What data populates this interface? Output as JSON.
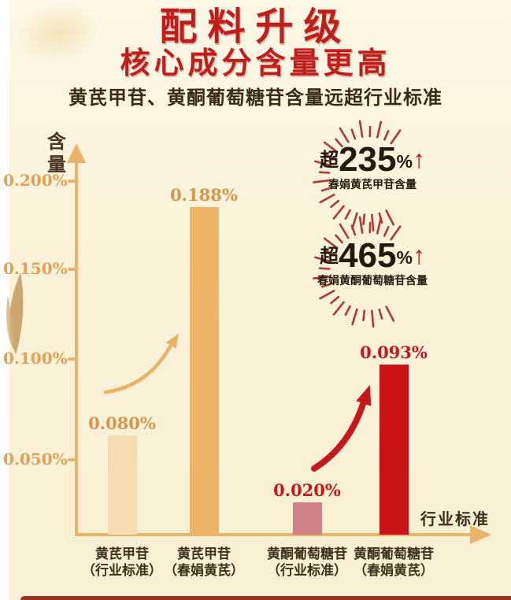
{
  "header": {
    "title_line1": "配料升级",
    "title_line2": "核心成分含量更高",
    "subtitle": "黄芪甲苷、黄酮葡萄糖苷含量远超行业标准"
  },
  "chart_data": {
    "type": "bar",
    "title": "配料升级 核心成分含量更高",
    "ylabel": "含量",
    "xlabel": "行业标准",
    "ylim": [
      0,
      0.22
    ],
    "grid": false,
    "legend": "none",
    "y_tick_labels": [
      "0.200%",
      "0.150%",
      "0.100%",
      "0.050%"
    ],
    "categories": [
      "黄芪甲苷（行业标准）",
      "黄芪甲苷（春娟黄芪）",
      "黄酮葡萄糖苷（行业标准）",
      "黄酮葡萄糖苷（春娟黄芪）"
    ],
    "values": [
      0.08,
      0.188,
      0.02,
      0.093
    ],
    "bars": [
      {
        "category_line1": "黄芪甲苷",
        "category_line2": "（行业标准）",
        "value": 0.08,
        "value_label": "0.080%",
        "fill": "#f4ddb0",
        "value_label_color": "#d6974b"
      },
      {
        "category_line1": "黄芪甲苷",
        "category_line2": "（春娟黄芪）",
        "value": 0.188,
        "value_label": "0.188%",
        "fill": "#edb366",
        "value_label_color": "#d6974b"
      },
      {
        "category_line1": "黄酮葡萄糖苷",
        "category_line2": "（行业标准）",
        "value": 0.02,
        "value_label": "0.020%",
        "fill": "#cf8287",
        "value_label_color": "#c6171c"
      },
      {
        "category_line1": "黄酮葡萄糖苷",
        "category_line2": "（春娟黄芪）",
        "value": 0.093,
        "value_label": "0.093%",
        "fill": "#cb1317",
        "value_label_color": "#c6171c"
      }
    ]
  },
  "badges": [
    {
      "prefix": "超",
      "number": "235",
      "unit": "%",
      "arrow": "↑",
      "caption": "春娟黄芪甲苷含量"
    },
    {
      "prefix": "超",
      "number": "465",
      "unit": "%",
      "arrow": "↑",
      "caption": "春娟黄酮葡萄糖苷含量"
    }
  ],
  "colors": {
    "title_red": "#c01d1b",
    "text_brown": "#3a2a18",
    "axis_gold": "#e9b469",
    "tick_label_gold": "#e0a258",
    "accent_red": "#c6171c",
    "badge_ray_red": "#b03a33",
    "bottom_strip_red": "#9c3127",
    "background_cream": "#fbf3da"
  }
}
